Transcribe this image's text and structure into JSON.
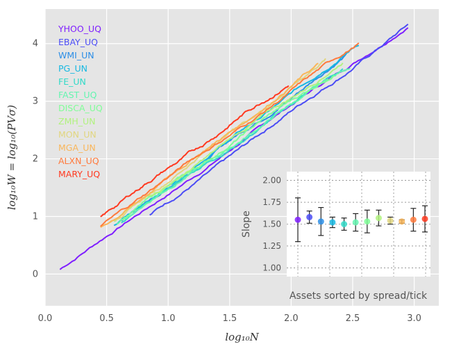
{
  "chart_data": [
    {
      "type": "line",
      "xlabel": "log₁₀N",
      "ylabel": "log₁₀W = log₁₀(PVσ)",
      "xlim": [
        0.0,
        3.2
      ],
      "ylim": [
        -0.55,
        4.6
      ],
      "xticks": [
        "0.0",
        "0.5",
        "1.0",
        "1.5",
        "2.0",
        "2.5",
        "3.0"
      ],
      "yticks": [
        "0",
        "1",
        "2",
        "3",
        "4"
      ],
      "grid": true,
      "legend_position": "top-left",
      "series": [
        {
          "name": "YHOO_UQ",
          "color": "#7f1fff",
          "x": [
            0.12,
            2.95
          ],
          "y": [
            0.08,
            4.35
          ]
        },
        {
          "name": "EBAY_UQ",
          "color": "#4b4cf5",
          "x": [
            0.85,
            2.95
          ],
          "y": [
            1.0,
            4.32
          ]
        },
        {
          "name": "WMI_UN",
          "color": "#2c8ee6",
          "x": [
            0.62,
            2.45
          ],
          "y": [
            0.92,
            3.8
          ]
        },
        {
          "name": "PG_UN",
          "color": "#16b8e2",
          "x": [
            0.56,
            2.55
          ],
          "y": [
            0.85,
            4.0
          ]
        },
        {
          "name": "FE_UN",
          "color": "#31dac8",
          "x": [
            0.62,
            2.42
          ],
          "y": [
            0.9,
            3.55
          ]
        },
        {
          "name": "FAST_UQ",
          "color": "#64f5b0",
          "x": [
            0.58,
            2.48
          ],
          "y": [
            0.88,
            3.62
          ]
        },
        {
          "name": "DISCA_UQ",
          "color": "#7ffe97",
          "x": [
            0.62,
            2.35
          ],
          "y": [
            0.94,
            3.52
          ]
        },
        {
          "name": "ZMH_UN",
          "color": "#b1f27f",
          "x": [
            0.56,
            2.42
          ],
          "y": [
            0.9,
            3.7
          ]
        },
        {
          "name": "MON_UN",
          "color": "#e1d67f",
          "x": [
            0.52,
            2.28
          ],
          "y": [
            0.86,
            3.72
          ]
        },
        {
          "name": "MGA_UN",
          "color": "#f9b65a",
          "x": [
            0.45,
            2.22
          ],
          "y": [
            0.8,
            3.62
          ]
        },
        {
          "name": "ALXN_UQ",
          "color": "#ff7a3d",
          "x": [
            0.45,
            2.55
          ],
          "y": [
            0.85,
            4.0
          ]
        },
        {
          "name": "MARY_UQ",
          "color": "#ff3920",
          "x": [
            0.45,
            1.98
          ],
          "y": [
            1.0,
            3.32
          ]
        }
      ]
    },
    {
      "type": "scatter",
      "position": "inset-lower-right",
      "ylabel": "Slope",
      "xlabel": "Assets sorted by spread/tick",
      "ylim": [
        0.9,
        2.1
      ],
      "yticks": [
        "1.00",
        "1.25",
        "1.50",
        "1.75",
        "2.00"
      ],
      "grid": true,
      "points": [
        {
          "name": "YHOO_UQ",
          "value": 1.55,
          "error": 0.25
        },
        {
          "name": "EBAY_UQ",
          "value": 1.58,
          "error": 0.07
        },
        {
          "name": "WMI_UN",
          "value": 1.53,
          "error": 0.16
        },
        {
          "name": "PG_UN",
          "value": 1.52,
          "error": 0.06
        },
        {
          "name": "FE_UN",
          "value": 1.5,
          "error": 0.07
        },
        {
          "name": "FAST_UQ",
          "value": 1.52,
          "error": 0.1
        },
        {
          "name": "DISCA_UQ",
          "value": 1.53,
          "error": 0.13
        },
        {
          "name": "ZMH_UN",
          "value": 1.57,
          "error": 0.09
        },
        {
          "name": "MON_UN",
          "value": 1.54,
          "error": 0.04
        },
        {
          "name": "MGA_UN",
          "value": 1.53,
          "error": 0.02
        },
        {
          "name": "ALXN_UQ",
          "value": 1.55,
          "error": 0.13
        },
        {
          "name": "MARY_UQ",
          "value": 1.56,
          "error": 0.15
        }
      ]
    }
  ]
}
